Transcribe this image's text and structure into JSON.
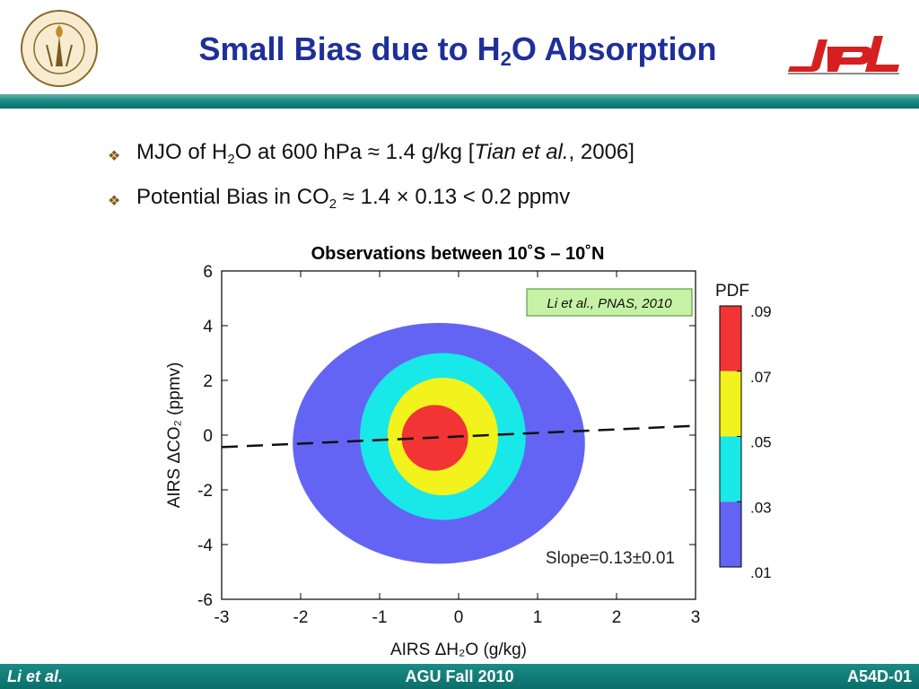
{
  "header": {
    "title_pre": "Small Bias due to H",
    "title_sub": "2",
    "title_post": "O Absorption",
    "seal_text": "CALIFORNIA INSTITUTE OF TECHNOLOGY",
    "seal_year": "1891",
    "logo_text": "JPL"
  },
  "bullets": [
    {
      "icon": "diamond-bullet-icon",
      "pre": "MJO of H",
      "sub": "2",
      "mid": "O at 600 hPa ≈ 1.4 g/kg [",
      "italic": "Tian et al.",
      "post": ", 2006]"
    },
    {
      "icon": "diamond-bullet-icon",
      "pre": "Potential Bias in CO",
      "sub": "2",
      "mid": " ≈ 1.4 × 0.13 < 0.2 ppmv",
      "italic": "",
      "post": ""
    }
  ],
  "chart_data": {
    "type": "contour",
    "title": "Observations between 10˚S – 10˚N",
    "xlabel": "AIRS ΔH₂O (g/kg)",
    "ylabel": "AIRS ΔCO₂ (ppmv)",
    "xlim": [
      -3,
      3
    ],
    "ylim": [
      -6,
      6
    ],
    "xticks": [
      -3,
      -2,
      -1,
      0,
      1,
      2,
      3
    ],
    "yticks": [
      -6,
      -4,
      -2,
      0,
      2,
      4,
      6
    ],
    "citation": "Li et al., PNAS, 2010",
    "annotation": "Slope=0.13±0.01",
    "regression": {
      "slope": 0.13,
      "intercept": -0.05,
      "style": "dashed"
    },
    "contour_levels": [
      {
        "level": 0.01,
        "color": "#6464f4",
        "center": [
          -0.25,
          -0.3
        ],
        "rx": 1.85,
        "ry": 4.4
      },
      {
        "level": 0.03,
        "color": "#19e8e8",
        "center": [
          -0.2,
          -0.05
        ],
        "rx": 1.05,
        "ry": 3.05
      },
      {
        "level": 0.05,
        "color": "#f2f21d",
        "center": [
          -0.2,
          -0.05
        ],
        "rx": 0.7,
        "ry": 2.15
      },
      {
        "level": 0.07,
        "color": "#f23434",
        "center": [
          -0.3,
          -0.1
        ],
        "rx": 0.42,
        "ry": 1.2
      }
    ],
    "colorbar": {
      "title": "PDF",
      "labels": [
        ".09",
        ".07",
        ".05",
        ".03",
        ".01"
      ],
      "colors": [
        "#f23434",
        "#f2f21d",
        "#19e8e8",
        "#6464f4"
      ]
    }
  },
  "footer": {
    "left": "Li et al.",
    "center": "AGU Fall 2010",
    "right": "A54D-01"
  }
}
